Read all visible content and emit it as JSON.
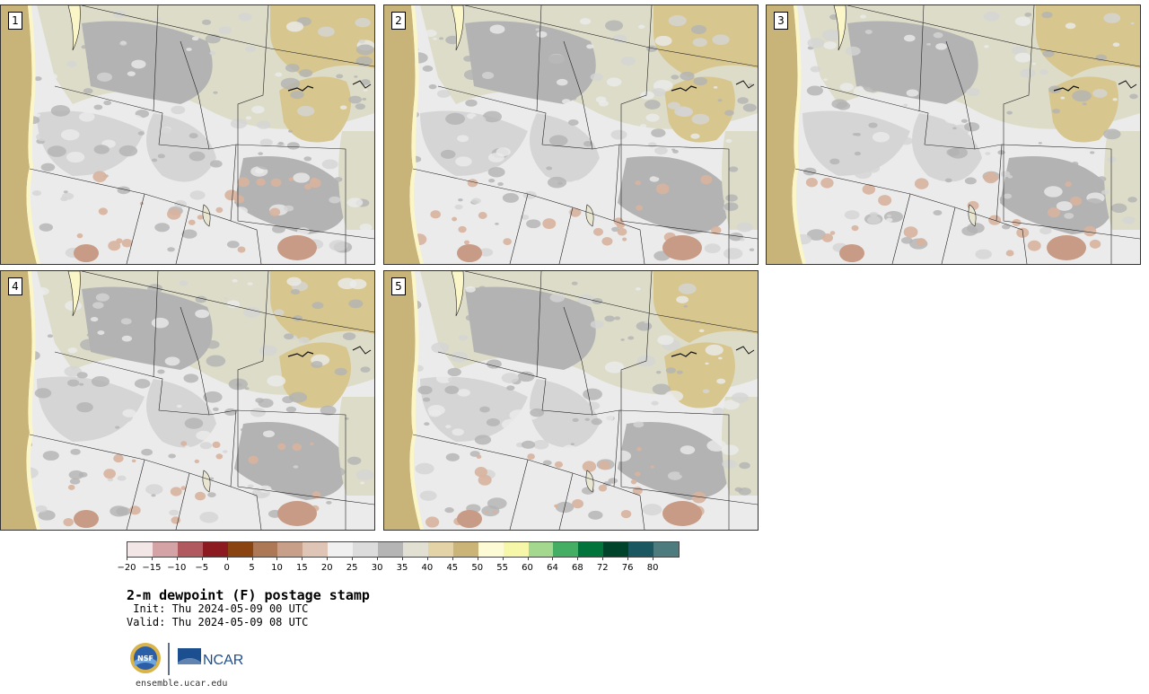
{
  "title": "2-m dewpoint (F) postage stamp",
  "init_line": " Init: Thu 2024-05-09 00 UTC",
  "valid_line": "Valid: Thu 2024-05-09 08 UTC",
  "website": "ensemble.ucar.edu",
  "logos": {
    "nsf": "NSF",
    "ncar": "NCAR"
  },
  "panels": [
    {
      "label": "1"
    },
    {
      "label": "2"
    },
    {
      "label": "3"
    },
    {
      "label": "4"
    },
    {
      "label": "5"
    }
  ],
  "colorbar": {
    "ticks": [
      "−20",
      "−15",
      "−10",
      "−5",
      "0",
      "5",
      "10",
      "15",
      "20",
      "25",
      "30",
      "35",
      "40",
      "45",
      "50",
      "55",
      "60",
      "64",
      "68",
      "72",
      "76",
      "80"
    ],
    "colors": [
      "#f3e6e6",
      "#d3a3a6",
      "#b05a60",
      "#8b1a21",
      "#8a4412",
      "#ad7856",
      "#c8a08a",
      "#dfc5b6",
      "#f0f0f0",
      "#dcdcdc",
      "#b5b5b5",
      "#e2e0d2",
      "#e4d3a7",
      "#cbb477",
      "#fdfbd6",
      "#f7f7a9",
      "#a5d88f",
      "#45ae65",
      "#00743a",
      "#00432b",
      "#1b5760",
      "#4e7b7d"
    ]
  },
  "map_colors": {
    "ocean": "#c8b378",
    "plains_tan": "#d8c68f",
    "light": "#ebebeb",
    "mid": "#d5d5d5",
    "dark": "#b3b3b3",
    "sage": "#dddcc9",
    "brown": "#d8b39f"
  }
}
